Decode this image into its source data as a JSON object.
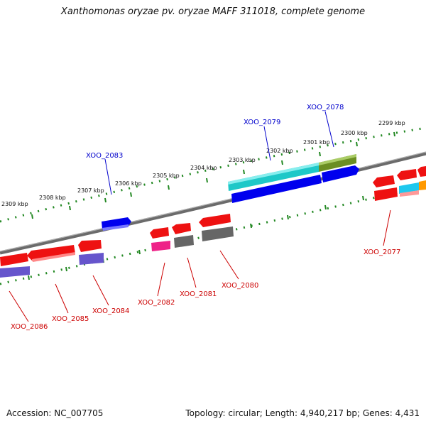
{
  "title": "Xanthomonas oryzae pv. oryzae MAFF 311018, complete genome",
  "footer": {
    "accession": "Accession: NC_007705",
    "topology": "Topology: circular; Length: 4,940,217 bp; Genes: 4,431"
  },
  "kbp_labels": [
    "2309 kbp",
    "2308 kbp",
    "2307 kbp",
    "2306 kbp",
    "2305 kbp",
    "2304 kbp",
    "2303 kbp",
    "2302 kbp",
    "2301 kbp",
    "2300 kbp",
    "2299 kbp"
  ],
  "gene_labels": {
    "XOO_2077": "XOO_2077",
    "XOO_2078": "XOO_2078",
    "XOO_2079": "XOO_2079",
    "XOO_2080": "XOO_2080",
    "XOO_2081": "XOO_2081",
    "XOO_2082": "XOO_2082",
    "XOO_2083": "XOO_2083",
    "XOO_2084": "XOO_2084",
    "XOO_2085": "XOO_2085",
    "XOO_2086": "XOO_2086"
  },
  "colors": {
    "forward_blue": "#0000ee",
    "cyan": "#1ec8c8",
    "olive": "#6b8e23",
    "reverse_red": "#ee1111",
    "gray": "#666666",
    "purple": "#7766cc",
    "magenta": "#ee2288",
    "orange": "#ff9900",
    "tick_green": "#228822"
  }
}
